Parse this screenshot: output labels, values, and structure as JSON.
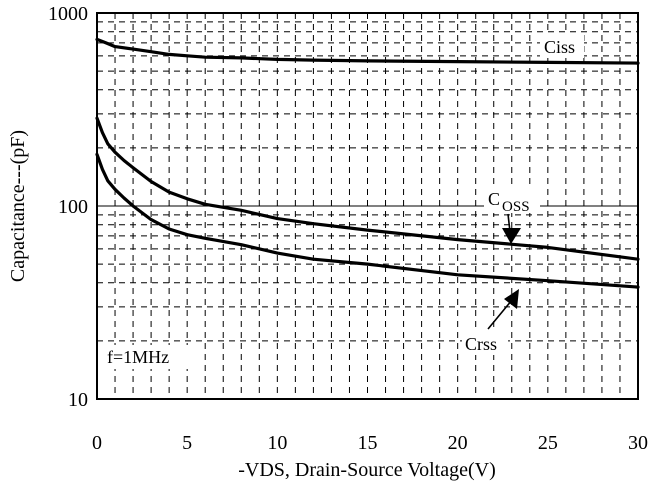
{
  "chart_data": {
    "type": "line",
    "title": "",
    "xlabel": "-VDS, Drain-Source Voltage(V)",
    "ylabel": "Capacitance---(pF)",
    "x_axis_ticks": [
      0,
      5,
      10,
      15,
      20,
      25,
      30
    ],
    "y_axis_ticks": [
      10,
      100,
      1000
    ],
    "xlim": [
      0,
      30
    ],
    "ylim": [
      10,
      1000
    ],
    "yscale": "log",
    "grid": true,
    "annotation": "f=1MHz",
    "series": [
      {
        "name": "Ciss",
        "x": [
          0,
          0.5,
          1,
          2,
          3,
          4,
          5,
          6,
          8,
          10,
          12,
          15,
          20,
          25,
          30
        ],
        "y": [
          730,
          700,
          670,
          650,
          630,
          610,
          600,
          590,
          585,
          575,
          570,
          565,
          560,
          555,
          550
        ]
      },
      {
        "name_prefix": "C",
        "name_sub": "OSS",
        "x": [
          0,
          0.3,
          0.6,
          1,
          1.5,
          2,
          3,
          4,
          5,
          6,
          8,
          10,
          12,
          15,
          20,
          25,
          30
        ],
        "y": [
          285,
          240,
          210,
          190,
          172,
          158,
          134,
          118,
          109,
          102,
          95,
          86,
          81,
          75,
          67,
          61,
          53
        ]
      },
      {
        "name": "Crss",
        "x": [
          0,
          0.3,
          0.6,
          1,
          1.5,
          2,
          3,
          4,
          5,
          6,
          8,
          10,
          12,
          15,
          20,
          25,
          30
        ],
        "y": [
          185,
          155,
          135,
          122,
          110,
          100,
          85,
          76,
          71,
          68,
          63,
          57,
          53,
          50,
          44,
          41,
          38
        ]
      }
    ]
  },
  "colors": {
    "line": "#000000",
    "background": "#ffffff"
  }
}
